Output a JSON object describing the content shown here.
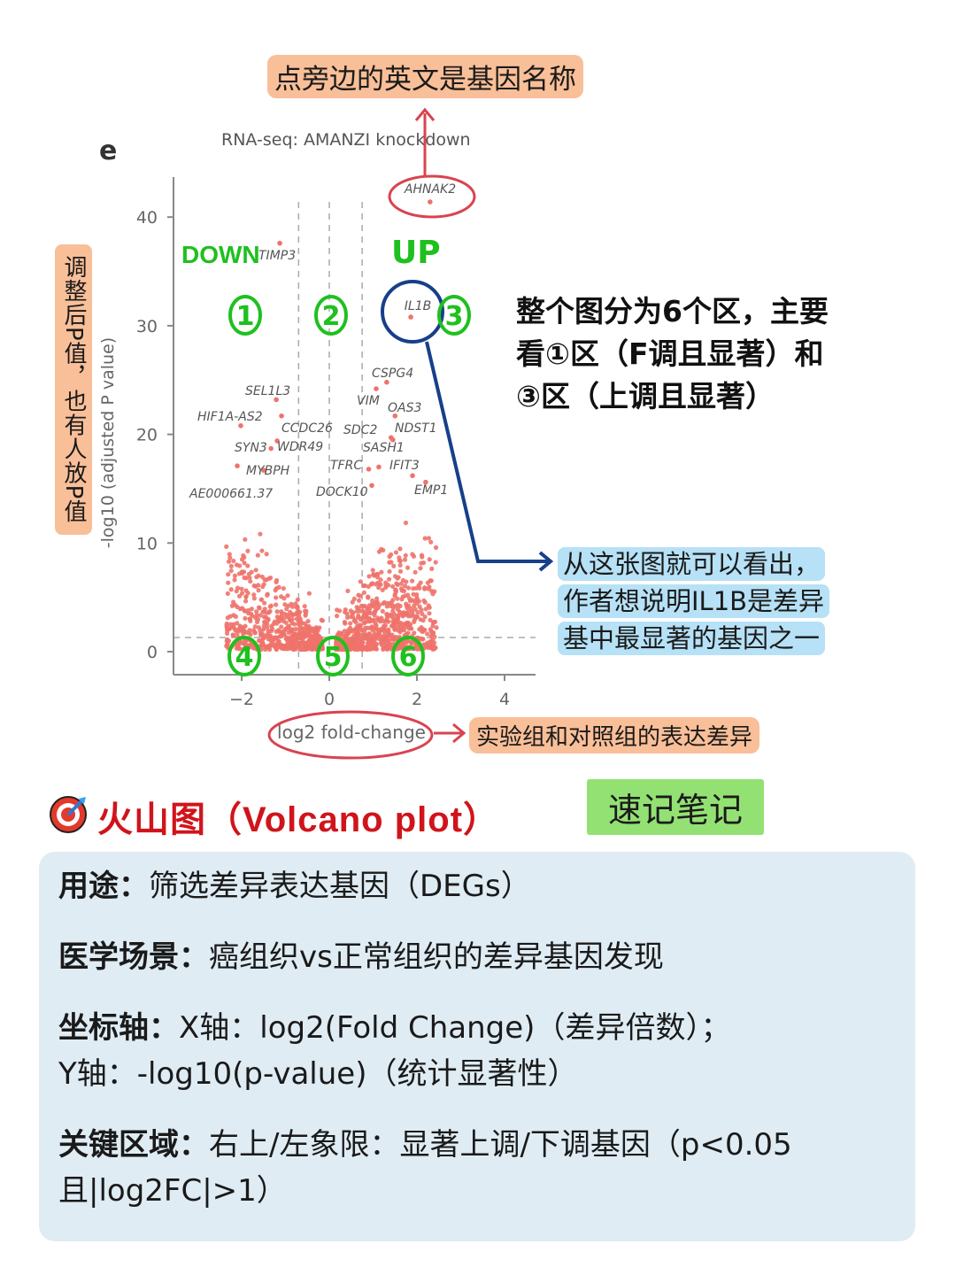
{
  "annotations": {
    "top_note": "点旁边的英文是基因名称",
    "side_note": "调整后P值，也有人放P值",
    "regions_note_lines": [
      "整个图分为6个区，主要",
      "看①区（F调且显著）和",
      "③区（上调且显著）"
    ],
    "conclusion_lines": [
      "从这张图就可以看出，",
      "作者想说明IL1B是差异",
      "基中最显著的基因之一"
    ],
    "xaxis_note": "实验组和对照组的表达差异",
    "down_label": "DOWN",
    "up_label": "UP",
    "zone_numbers": [
      "1",
      "2",
      "3",
      "4",
      "5",
      "6"
    ],
    "colors": {
      "annotation_orange": "#f9bf98",
      "annotation_blue": "#b6e1f6",
      "circle_red": "#d9434f",
      "circle_blue": "#173f8a",
      "handwriting_green": "#1fc01f"
    }
  },
  "chart_data": {
    "type": "scatter",
    "panel_letter": "e",
    "title": "RNA-seq: AMANZI knockdown",
    "xlabel": "log2 fold-change",
    "ylabel": "-log10 (adjusted P value)",
    "xlim": [
      -3.5,
      4.7
    ],
    "ylim": [
      0,
      43
    ],
    "xticks": [
      -2,
      0,
      2,
      4
    ],
    "yticks": [
      0,
      10,
      20,
      30,
      40
    ],
    "threshold_x": [
      -0.7,
      0,
      0.75
    ],
    "threshold_y": 1.3,
    "point_color": "#ee736c",
    "grid": false,
    "labeled_genes": [
      {
        "name": "AHNAK2",
        "x": 2.3,
        "y": 41.4
      },
      {
        "name": "TIMP3",
        "x": -1.13,
        "y": 37.6
      },
      {
        "name": "IL1B",
        "x": 1.86,
        "y": 30.8
      },
      {
        "name": "CSPG4",
        "x": 1.31,
        "y": 24.8
      },
      {
        "name": "VIM",
        "x": 1.07,
        "y": 24.2
      },
      {
        "name": "SEL1L3",
        "x": -1.21,
        "y": 23.2
      },
      {
        "name": "HIF1A-AS2",
        "x": -2.02,
        "y": 20.8
      },
      {
        "name": "OAS3",
        "x": 1.5,
        "y": 21.7
      },
      {
        "name": "CCDC26",
        "x": -1.09,
        "y": 21.7
      },
      {
        "name": "SDC2",
        "x": 1.41,
        "y": 19.7
      },
      {
        "name": "NDST1",
        "x": 1.45,
        "y": 19.5
      },
      {
        "name": "WDR49",
        "x": -1.19,
        "y": 19.4
      },
      {
        "name": "SYN3",
        "x": -1.33,
        "y": 18.7
      },
      {
        "name": "SASH1",
        "x": 1.13,
        "y": 17.0
      },
      {
        "name": "IFIT3",
        "x": 1.9,
        "y": 16.2
      },
      {
        "name": "MYBPH",
        "x": -1.5,
        "y": 16.7
      },
      {
        "name": "TFRC",
        "x": 0.9,
        "y": 16.8
      },
      {
        "name": "AE000661.37",
        "x": -2.1,
        "y": 17.1
      },
      {
        "name": "DOCK10",
        "x": 0.97,
        "y": 15.3
      },
      {
        "name": "EMP1",
        "x": 2.2,
        "y": 15.6
      }
    ]
  },
  "section": {
    "icon": "target-dart-icon",
    "title": "火山图（Volcano plot）",
    "tag": "速记笔记"
  },
  "card": {
    "purpose_label": "用途：",
    "purpose_text": "筛选差异表达基因（DEGs）",
    "scene_label": "医学场景：",
    "scene_text": "癌组织vs正常组织的差异基因发现",
    "axis_label": "坐标轴：",
    "axis_text_1": "X轴：log2(Fold Change)（差异倍数）；",
    "axis_text_2": "Y轴：-log10(p-value)（统计显著性）",
    "region_label": "关键区域：",
    "region_text_1": "右上/左象限：显著上调/下调基因（p<0.05",
    "region_text_2": "且|log2FC|>1）"
  }
}
